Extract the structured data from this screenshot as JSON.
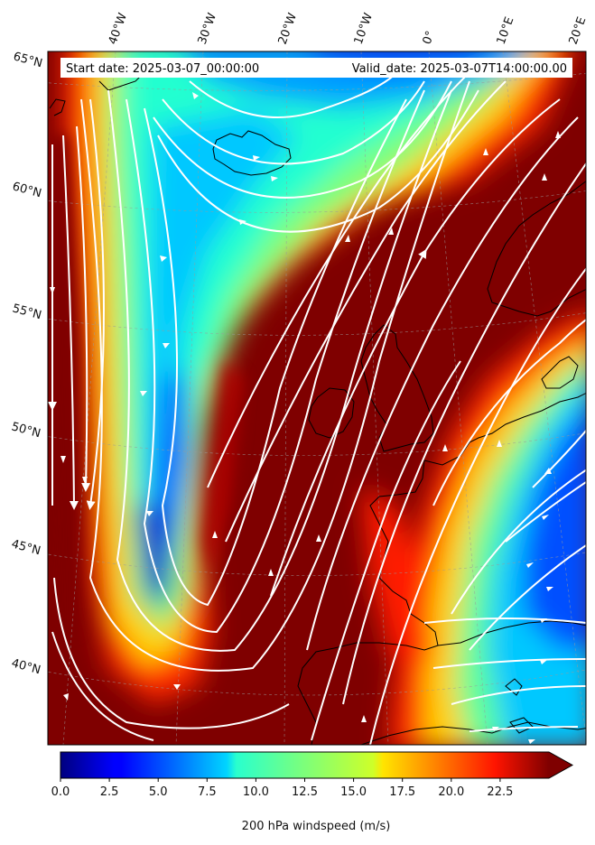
{
  "header": {
    "start_date": "Start date: 2025-03-07_00:00:00",
    "valid_date": "Valid_date: 2025-03-07T14:00:00.00"
  },
  "longitude_labels": [
    "40°W",
    "30°W",
    "20°W",
    "10°W",
    "0°",
    "10°E",
    "20°E"
  ],
  "latitude_labels": [
    "65°N",
    "60°N",
    "55°N",
    "50°N",
    "45°N",
    "40°N"
  ],
  "colorbar": {
    "ticks": [
      "0.0",
      "2.5",
      "5.0",
      "7.5",
      "10.0",
      "12.5",
      "15.0",
      "17.5",
      "20.0",
      "22.5"
    ],
    "label": "200 hPa windspeed (m/s)",
    "range": [
      0,
      25
    ],
    "extend": "max"
  },
  "colors": {
    "jet_core": "#7f0000",
    "calm": "#00007f",
    "streamline": "#ffffff",
    "coastline": "#000000"
  }
}
